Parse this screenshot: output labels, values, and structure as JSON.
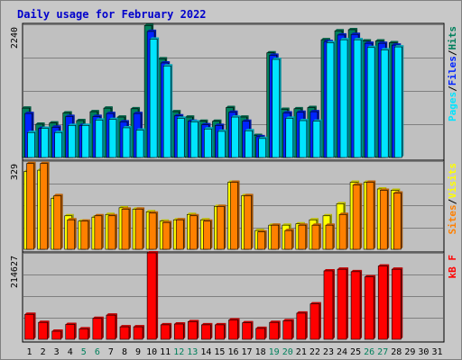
{
  "title": "Daily usage for February 2022",
  "colors": {
    "hits": "#00805c",
    "files": "#0024ff",
    "pages": "#00e4ff",
    "visits": "#ffff00",
    "sites": "#ff8000",
    "kbytes": "#ff0000",
    "weekend": "#00805c",
    "weekday": "#000000",
    "plot_bg": "#c0c0c0",
    "separator": "#000000"
  },
  "panels": {
    "top": {
      "max_label": "2240",
      "legend": [
        {
          "text": "Pages",
          "color": "#00e4ff"
        },
        {
          "text": "/",
          "color": "#000000"
        },
        {
          "text": "Files",
          "color": "#0024ff"
        },
        {
          "text": "/",
          "color": "#000000"
        },
        {
          "text": "Hits",
          "color": "#00805c"
        }
      ]
    },
    "middle": {
      "max_label": "329",
      "legend": [
        {
          "text": "Sites",
          "color": "#ff8000"
        },
        {
          "text": "/",
          "color": "#000000"
        },
        {
          "text": "Visits",
          "color": "#ffff00"
        }
      ]
    },
    "bottom": {
      "max_label": "214627",
      "legend": [
        {
          "text": "kB F",
          "color": "#ff0000"
        }
      ]
    }
  },
  "chart_data": {
    "type": "bar",
    "title": "Daily usage for February 2022",
    "categories": [
      "1",
      "2",
      "3",
      "4",
      "5",
      "6",
      "7",
      "8",
      "9",
      "10",
      "11",
      "12",
      "13",
      "14",
      "15",
      "16",
      "17",
      "18",
      "19",
      "20",
      "21",
      "22",
      "23",
      "24",
      "25",
      "26",
      "27",
      "28",
      "29",
      "30",
      "31"
    ],
    "weekend_days": [
      "5",
      "6",
      "12",
      "13",
      "19",
      "20",
      "26",
      "27"
    ],
    "top": {
      "ymax": 2240,
      "series": [
        {
          "name": "Hits",
          "color": "#00805c",
          "values": [
            830,
            560,
            580,
            750,
            620,
            770,
            830,
            680,
            820,
            2220,
            1660,
            770,
            680,
            610,
            610,
            840,
            680,
            370,
            1760,
            810,
            820,
            840,
            1980,
            2130,
            2150,
            1960,
            1960,
            1930,
            null,
            null,
            null
          ]
        },
        {
          "name": "Files",
          "color": "#0024ff",
          "values": [
            740,
            490,
            510,
            690,
            540,
            690,
            740,
            600,
            740,
            2120,
            1590,
            700,
            610,
            550,
            540,
            760,
            610,
            350,
            1720,
            750,
            760,
            770,
            1950,
            2060,
            2070,
            1920,
            1920,
            1890,
            null,
            null,
            null
          ]
        },
        {
          "name": "Pages",
          "color": "#00e4ff",
          "values": [
            420,
            490,
            420,
            540,
            540,
            630,
            640,
            500,
            460,
            1990,
            1540,
            660,
            600,
            480,
            440,
            680,
            450,
            320,
            1650,
            660,
            620,
            610,
            1930,
            1980,
            1980,
            1850,
            1810,
            1860,
            null,
            null,
            null
          ]
        }
      ]
    },
    "middle": {
      "ymax": 329,
      "series": [
        {
          "name": "Visits",
          "color": "#ffff00",
          "values": [
            290,
            295,
            190,
            125,
            105,
            120,
            130,
            155,
            150,
            140,
            105,
            110,
            130,
            110,
            160,
            250,
            200,
            70,
            90,
            90,
            95,
            110,
            125,
            170,
            250,
            250,
            225,
            220,
            null,
            null,
            null
          ]
        },
        {
          "name": "Sites",
          "color": "#ff8000",
          "values": [
            320,
            320,
            200,
            110,
            105,
            125,
            125,
            150,
            150,
            135,
            100,
            110,
            125,
            105,
            160,
            250,
            200,
            65,
            90,
            70,
            90,
            90,
            90,
            130,
            240,
            250,
            220,
            210,
            null,
            null,
            null
          ]
        }
      ]
    },
    "bottom": {
      "ymax": 214627,
      "series": [
        {
          "name": "kB F",
          "color": "#ff0000",
          "values": [
            62000,
            42000,
            20000,
            37000,
            26000,
            52000,
            60000,
            31000,
            31000,
            214627,
            36000,
            38000,
            44000,
            36000,
            36000,
            48000,
            41000,
            27000,
            42000,
            46000,
            65000,
            88000,
            170000,
            174000,
            168000,
            155000,
            182000,
            174000,
            null,
            null,
            null
          ]
        }
      ]
    }
  }
}
